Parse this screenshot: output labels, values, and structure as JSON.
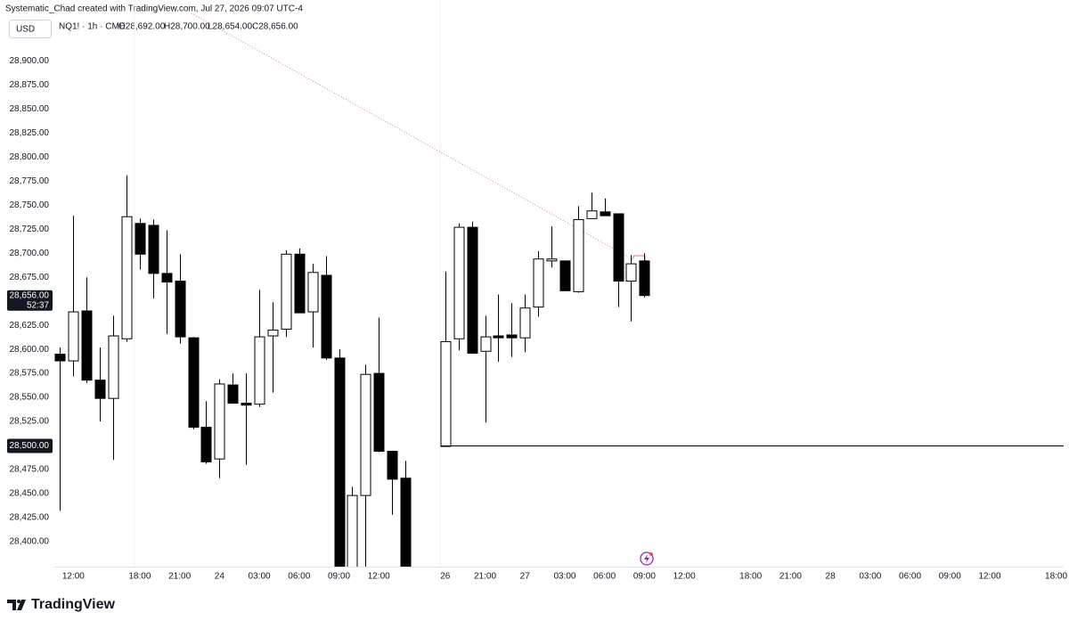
{
  "header": {
    "credit": "Systematic_Chad created with TradingView.com, Jul 27, 2026 09:07 UTC-4",
    "currency": "USD",
    "symbol": "NQ1! · 1h · CME",
    "ohlc": [
      "O28,692.00",
      "H28,700.00",
      "L28,654.00",
      "C28,656.00"
    ]
  },
  "footer": {
    "brand": "TradingView"
  },
  "chart_data": {
    "type": "candlestick",
    "categories": [
      null,
      "12:00",
      null,
      null,
      null,
      null,
      "18:00",
      null,
      null,
      "21:00",
      null,
      null,
      "24",
      null,
      null,
      "03:00",
      null,
      null,
      "06:00",
      null,
      null,
      "09:00",
      null,
      null,
      "12:00",
      null,
      null,
      null,
      null,
      "26",
      null,
      null,
      "21:00",
      null,
      null,
      "27",
      null,
      null,
      "03:00",
      null,
      null,
      "06:00",
      null,
      null,
      "09:00",
      null,
      null,
      "12:00",
      null,
      null,
      null,
      null,
      "18:00",
      null,
      null,
      "21:00",
      null,
      null,
      "28",
      null,
      null,
      "03:00",
      null,
      null,
      "06:00",
      null,
      null,
      "09:00",
      null,
      null,
      "12:00",
      null,
      null,
      null,
      null,
      "18:00"
    ],
    "open": [
      28595,
      28588,
      28640,
      28568,
      28549,
      28611,
      28731,
      28729,
      28679,
      28671,
      28612,
      28519,
      28486,
      28563,
      28544,
      28543,
      28614,
      28621,
      28699,
      28639,
      28677,
      28591,
      28360,
      28448,
      28575,
      28494,
      28466,
      null,
      null,
      28499,
      28611,
      28727,
      28598,
      28614,
      28615,
      28612,
      28644,
      28692,
      28692,
      28660,
      28736,
      28743,
      28741,
      28671,
      28692,
      null,
      null,
      null,
      null,
      null,
      null,
      null,
      null,
      null,
      null,
      null,
      null,
      null,
      null,
      null,
      null,
      null,
      null,
      null,
      null,
      null,
      null,
      null,
      null,
      null,
      null,
      null,
      null,
      null,
      null,
      null
    ],
    "high": [
      28602,
      28739,
      28675,
      28602,
      28635,
      28781,
      28736,
      28735,
      28724,
      28699,
      28613,
      28546,
      28569,
      28575,
      28575,
      28662,
      28649,
      28703,
      28705,
      28689,
      28697,
      28600,
      28457,
      28584,
      28633,
      28494,
      28484,
      null,
      null,
      28681,
      28731,
      28733,
      28635,
      28657,
      28648,
      28657,
      28702,
      28728,
      28692,
      28749,
      28763,
      28757,
      28741,
      28698,
      28700,
      null,
      null,
      null,
      null,
      null,
      null,
      null,
      null,
      null,
      null,
      null,
      null,
      null,
      null,
      null,
      null,
      null,
      null,
      null,
      null,
      null,
      null,
      null,
      null,
      null,
      null,
      null,
      null,
      null,
      null,
      null
    ],
    "low": [
      28432,
      28572,
      28565,
      28525,
      28485,
      28608,
      28683,
      28653,
      28616,
      28606,
      28517,
      28481,
      28466,
      28544,
      28480,
      28540,
      28555,
      28613,
      28638,
      28602,
      28589,
      28350,
      28350,
      28355,
      28493,
      28428,
      28355,
      null,
      null,
      28499,
      28599,
      28596,
      28524,
      28587,
      28592,
      28597,
      28634,
      28685,
      28661,
      28659,
      28736,
      28739,
      28644,
      28629,
      28654,
      null,
      null,
      null,
      null,
      null,
      null,
      null,
      null,
      null,
      null,
      null,
      null,
      null,
      null,
      null,
      null,
      null,
      null,
      null,
      null,
      null,
      null,
      null,
      null,
      null,
      null,
      null,
      null,
      null,
      null,
      null
    ],
    "close": [
      28588,
      28639,
      28568,
      28549,
      28614,
      28738,
      28699,
      28679,
      28670,
      28613,
      28519,
      28483,
      28564,
      28544,
      28542,
      28613,
      28620,
      28699,
      28638,
      28680,
      28591,
      28365,
      28448,
      28574,
      28494,
      28465,
      28370,
      null,
      null,
      28608,
      28727,
      28596,
      28613,
      28612,
      28612,
      28643,
      28694,
      28694,
      28661,
      28735,
      28744,
      28739,
      28671,
      28689,
      28656,
      null,
      null,
      null,
      null,
      null,
      null,
      null,
      null,
      null,
      null,
      null,
      null,
      null,
      null,
      null,
      null,
      null,
      null,
      null,
      null,
      null,
      null,
      null,
      null,
      null,
      null,
      null,
      null,
      null,
      null,
      null
    ],
    "up_color": "#ffffff",
    "down_color": "#000000",
    "outline_color": "#000000",
    "ylim": [
      28374,
      28943
    ],
    "yticks": [
      {
        "value": 28900,
        "label": "28,900.00"
      },
      {
        "value": 28875,
        "label": "28,875.00"
      },
      {
        "value": 28850,
        "label": "28,850.00"
      },
      {
        "value": 28825,
        "label": "28,825.00"
      },
      {
        "value": 28800,
        "label": "28,800.00"
      },
      {
        "value": 28775,
        "label": "28,775.00"
      },
      {
        "value": 28750,
        "label": "28,750.00"
      },
      {
        "value": 28725,
        "label": "28,725.00"
      },
      {
        "value": 28700,
        "label": "28,700.00"
      },
      {
        "value": 28675,
        "label": "28,675.00"
      },
      {
        "value": 28625,
        "label": "28,625.00"
      },
      {
        "value": 28600,
        "label": "28,600.00"
      },
      {
        "value": 28575,
        "label": "28,575.00"
      },
      {
        "value": 28550,
        "label": "28,550.00"
      },
      {
        "value": 28525,
        "label": "28,525.00"
      },
      {
        "value": 28475,
        "label": "28,475.00"
      },
      {
        "value": 28450,
        "label": "28,450.00"
      },
      {
        "value": 28425,
        "label": "28,425.00"
      },
      {
        "value": 28400,
        "label": "28,400.00"
      }
    ],
    "price_line": {
      "value": 28500,
      "label": "28,500.00"
    },
    "last_price": {
      "value": 28656,
      "label": "28,656.00",
      "countdown": "52:37"
    }
  }
}
